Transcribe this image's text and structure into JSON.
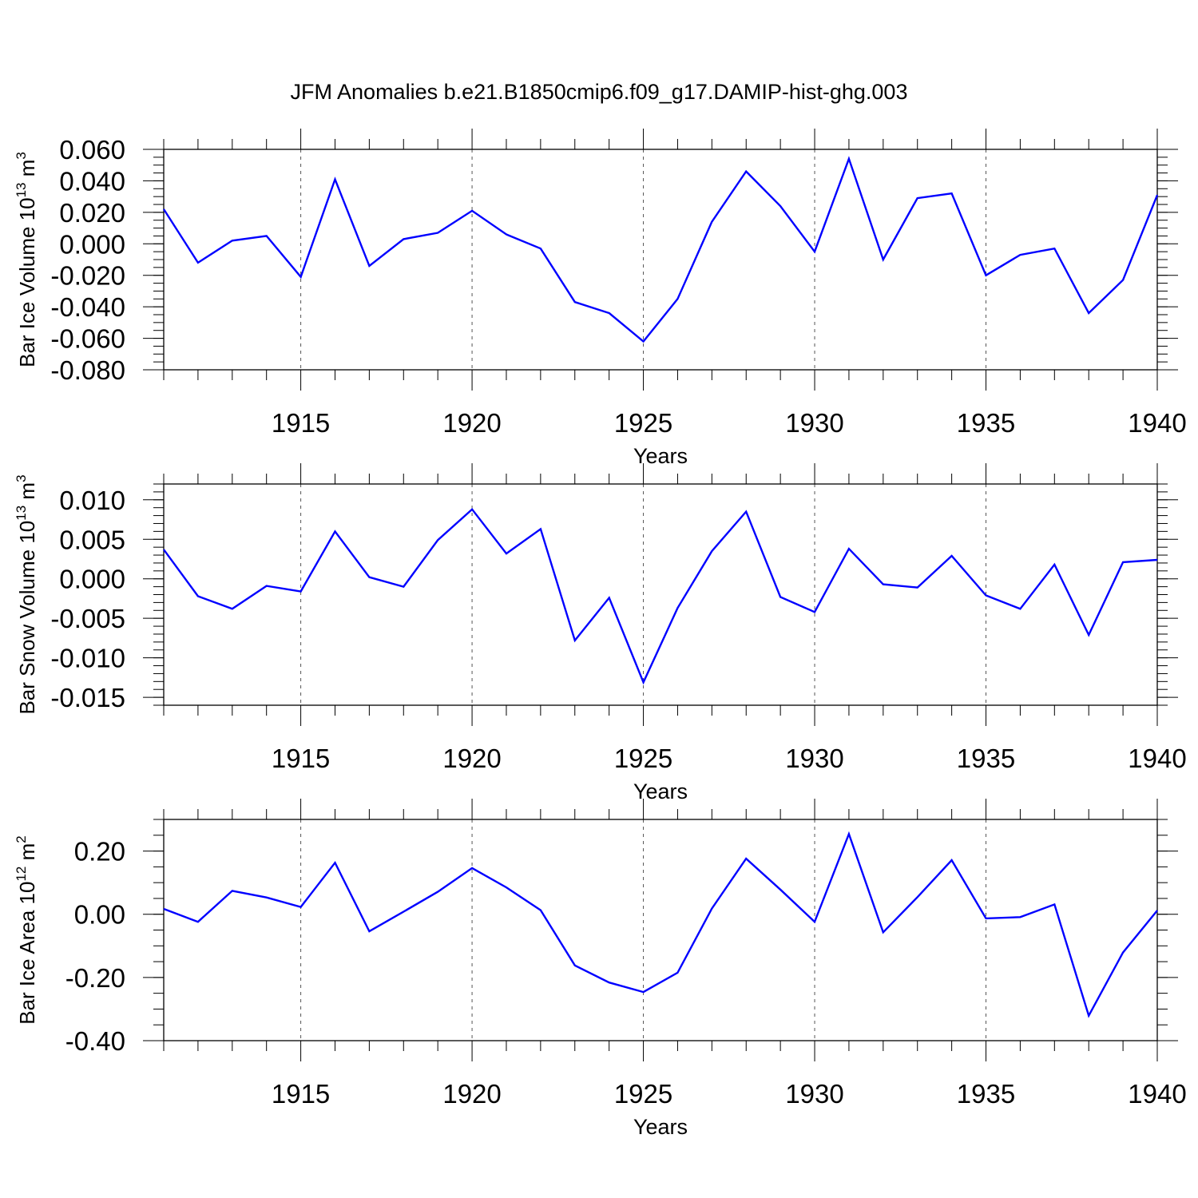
{
  "title": "JFM Anomalies b.e21.B1850cmip6.f09_g17.DAMIP-hist-ghg.003",
  "colors": {
    "line": "#0000ff",
    "axis": "#000000",
    "grid": "#555555"
  },
  "chart_data": [
    {
      "type": "line",
      "ylabel_main": "Bar Ice Volume 10",
      "ylabel_exp": "13",
      "ylabel_unit": " m",
      "ylabel_unit_exp": "3",
      "xlabel": "Years",
      "xlim": [
        1911,
        1940
      ],
      "ylim": [
        -0.08,
        0.06
      ],
      "yticks": [
        -0.08,
        -0.06,
        -0.04,
        -0.02,
        0.0,
        0.02,
        0.04,
        0.06
      ],
      "ytick_labels": [
        "-0.080",
        "-0.060",
        "-0.040",
        "-0.020",
        "0.000",
        "0.020",
        "0.040",
        "0.060"
      ],
      "yminor": 0.005,
      "xticks": [
        1915,
        1920,
        1925,
        1930,
        1935,
        1940
      ],
      "xtick_labels": [
        "1915",
        "1920",
        "1925",
        "1930",
        "1935",
        "1940"
      ],
      "x": [
        1911,
        1912,
        1913,
        1914,
        1915,
        1916,
        1917,
        1918,
        1919,
        1920,
        1921,
        1922,
        1923,
        1924,
        1925,
        1926,
        1927,
        1928,
        1929,
        1930,
        1931,
        1932,
        1933,
        1934,
        1935,
        1936,
        1937,
        1938,
        1939,
        1940
      ],
      "values": [
        0.022,
        -0.012,
        0.002,
        0.005,
        -0.021,
        0.041,
        -0.014,
        0.003,
        0.007,
        0.021,
        0.006,
        -0.003,
        -0.037,
        -0.044,
        -0.062,
        -0.035,
        0.014,
        0.046,
        0.024,
        -0.005,
        0.054,
        -0.01,
        0.029,
        0.032,
        -0.02,
        -0.007,
        -0.003,
        -0.044,
        -0.023,
        0.031
      ]
    },
    {
      "type": "line",
      "ylabel_main": "Bar Snow Volume 10",
      "ylabel_exp": "13",
      "ylabel_unit": " m",
      "ylabel_unit_exp": "3",
      "xlabel": "Years",
      "xlim": [
        1911,
        1940
      ],
      "ylim": [
        -0.016,
        0.012
      ],
      "yticks": [
        -0.015,
        -0.01,
        -0.005,
        0.0,
        0.005,
        0.01
      ],
      "ytick_labels": [
        "-0.015",
        "-0.010",
        "-0.005",
        "0.000",
        "0.005",
        "0.010"
      ],
      "yminor": 0.001,
      "xticks": [
        1915,
        1920,
        1925,
        1930,
        1935,
        1940
      ],
      "xtick_labels": [
        "1915",
        "1920",
        "1925",
        "1930",
        "1935",
        "1940"
      ],
      "x": [
        1911,
        1912,
        1913,
        1914,
        1915,
        1916,
        1917,
        1918,
        1919,
        1920,
        1921,
        1922,
        1923,
        1924,
        1925,
        1926,
        1927,
        1928,
        1929,
        1930,
        1931,
        1932,
        1933,
        1934,
        1935,
        1936,
        1937,
        1938,
        1939,
        1940
      ],
      "values": [
        0.0037,
        -0.0022,
        -0.0038,
        -0.0009,
        -0.0016,
        0.006,
        0.0002,
        -0.001,
        0.0049,
        0.0088,
        0.0032,
        0.0063,
        -0.0078,
        -0.0024,
        -0.0131,
        -0.0037,
        0.0035,
        0.0085,
        -0.0023,
        -0.0042,
        0.0038,
        -0.0007,
        -0.0011,
        0.0029,
        -0.0021,
        -0.0038,
        0.0018,
        -0.0071,
        0.0021,
        0.0024
      ]
    },
    {
      "type": "line",
      "ylabel_main": "Bar Ice Area 10",
      "ylabel_exp": "12",
      "ylabel_unit": " m",
      "ylabel_unit_exp": "2",
      "xlabel": "Years",
      "xlim": [
        1911,
        1940
      ],
      "ylim": [
        -0.4,
        0.3
      ],
      "yticks": [
        -0.4,
        -0.2,
        0.0,
        0.2
      ],
      "ytick_labels": [
        "-0.40",
        "-0.20",
        "0.00",
        "0.20"
      ],
      "yminor": 0.05,
      "xticks": [
        1915,
        1920,
        1925,
        1930,
        1935,
        1940
      ],
      "xtick_labels": [
        "1915",
        "1920",
        "1925",
        "1930",
        "1935",
        "1940"
      ],
      "x": [
        1911,
        1912,
        1913,
        1914,
        1915,
        1916,
        1917,
        1918,
        1919,
        1920,
        1921,
        1922,
        1923,
        1924,
        1925,
        1926,
        1927,
        1928,
        1929,
        1930,
        1931,
        1932,
        1933,
        1934,
        1935,
        1936,
        1937,
        1938,
        1939,
        1940
      ],
      "values": [
        0.017,
        -0.024,
        0.074,
        0.053,
        0.023,
        0.163,
        -0.054,
        0.008,
        0.071,
        0.146,
        0.085,
        0.013,
        -0.162,
        -0.216,
        -0.246,
        -0.185,
        0.018,
        0.176,
        0.078,
        -0.024,
        0.254,
        -0.057,
        0.054,
        0.171,
        -0.013,
        -0.009,
        0.031,
        -0.321,
        -0.121,
        0.012
      ]
    }
  ]
}
